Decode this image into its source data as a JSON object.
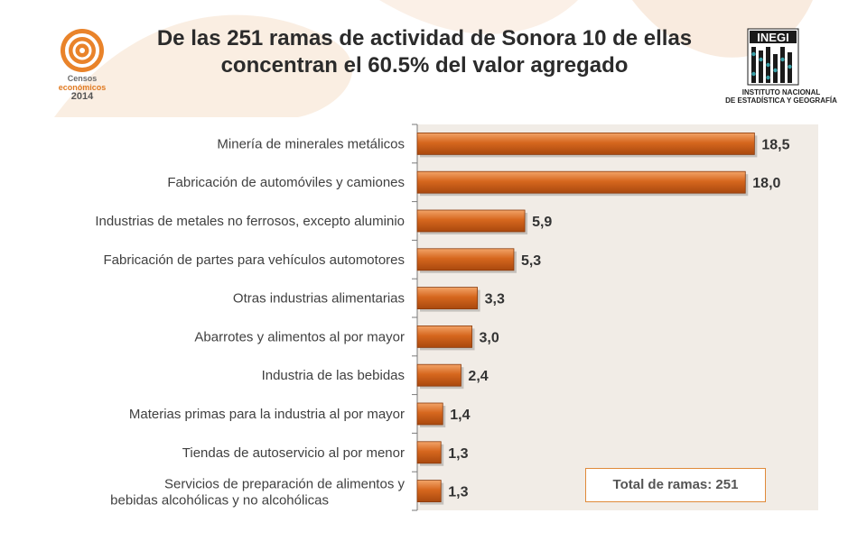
{
  "title_line1": "De las 251 ramas de actividad de Sonora  10 de ellas",
  "title_line2": "concentran el 60.5% del valor agregado",
  "logo_left": {
    "line1": "Censos",
    "line2": "económicos",
    "line3": "2014"
  },
  "logo_right": {
    "brand": "INEGI",
    "line1": "INSTITUTO NACIONAL",
    "line2": "DE ESTADÍSTICA Y GEOGRAFÍA"
  },
  "total_label": "Total de ramas: 251",
  "chart_data": {
    "type": "bar",
    "orientation": "horizontal",
    "categories": [
      "Minería de minerales metálicos",
      "Fabricación de automóviles y camiones",
      "Industrias de metales no ferrosos, excepto aluminio",
      "Fabricación de partes para vehículos automotores",
      "Otras industrias alimentarias",
      "Abarrotes y alimentos al por mayor",
      "Industria de las bebidas",
      "Materias primas para la industria al por mayor",
      "Tiendas de autoservicio al por menor",
      "Servicios de preparación de alimentos y bebidas alcohólicas y no alcohólicas"
    ],
    "values": [
      18.5,
      18.0,
      5.9,
      5.3,
      3.3,
      3.0,
      2.4,
      1.4,
      1.3,
      1.3
    ],
    "value_labels": [
      "18,5",
      "18,0",
      "5,9",
      "5,3",
      "3,3",
      "3,0",
      "2,4",
      "1,4",
      "1,3",
      "1,3"
    ],
    "xlim": [
      0,
      22
    ],
    "bar_color": "#d6671e",
    "grid": false
  }
}
